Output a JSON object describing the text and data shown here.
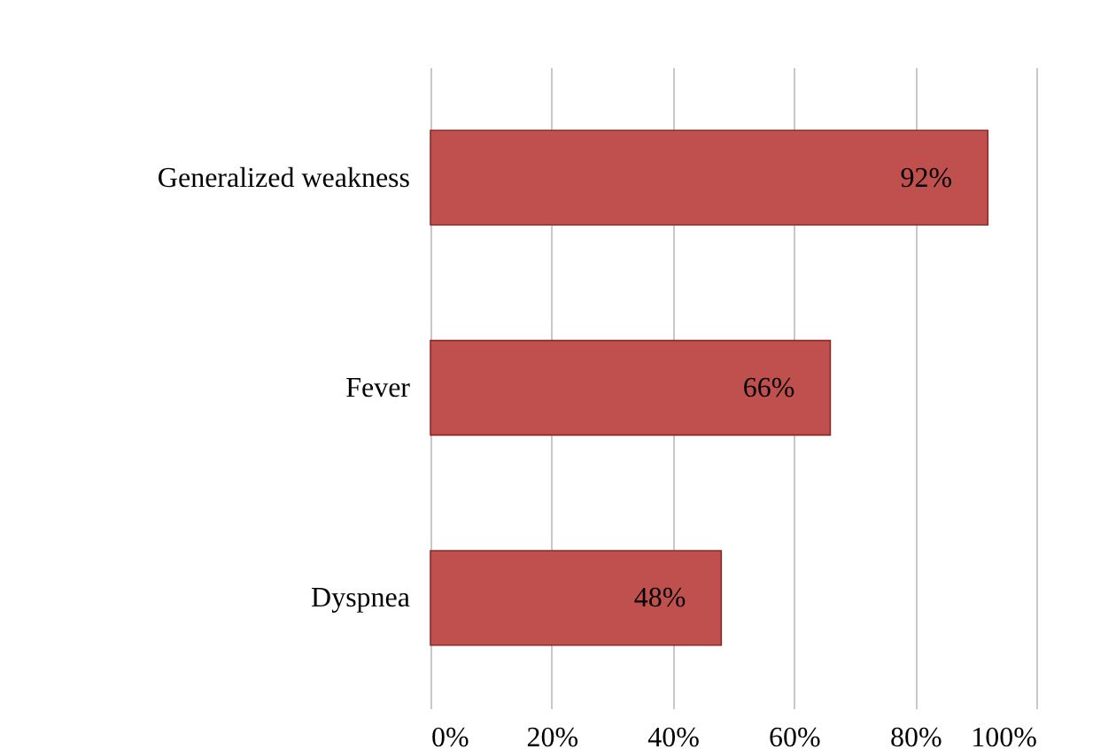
{
  "chart_data": {
    "type": "bar",
    "orientation": "horizontal",
    "categories": [
      "Generalized  weakness",
      "Fever",
      "Dyspnea"
    ],
    "values": [
      92,
      66,
      48
    ],
    "value_labels": [
      "92%",
      "66%",
      "48%"
    ],
    "color": "#c0504d",
    "xlim": [
      0,
      100
    ],
    "xticks": [
      {
        "value": 0,
        "label": "0%"
      },
      {
        "value": 20,
        "label": "20%"
      },
      {
        "value": 40,
        "label": "40%"
      },
      {
        "value": 60,
        "label": "60%"
      },
      {
        "value": 80,
        "label": "80%"
      },
      {
        "value": 100,
        "label": "100%"
      }
    ],
    "grid": "x"
  }
}
